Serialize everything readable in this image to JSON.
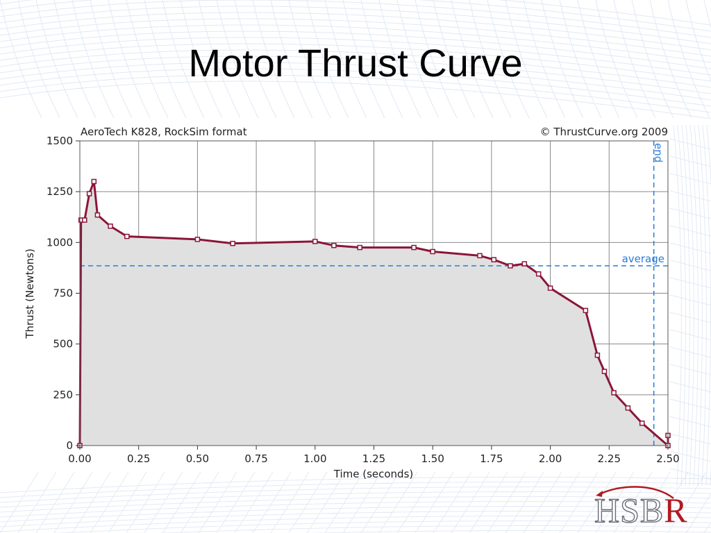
{
  "slide": {
    "title": "Motor Thrust Curve",
    "logo": {
      "text": "HSBR",
      "colors": {
        "letters": "#ffffff",
        "outline": "#6a6a7a",
        "accent": "#b01a20"
      }
    }
  },
  "chart_data": {
    "type": "area",
    "caption_left": "AeroTech K828, RockSim format",
    "caption_right": "© ThrustCurve.org 2009",
    "xlabel": "Time (seconds)",
    "ylabel": "Thrust (Newtons)",
    "xlim": [
      0,
      2.5
    ],
    "ylim": [
      0,
      1500
    ],
    "x_ticks": [
      "0.00",
      "0.25",
      "0.50",
      "0.75",
      "1.00",
      "1.25",
      "1.50",
      "1.75",
      "2.00",
      "2.25",
      "2.50"
    ],
    "y_ticks": [
      "0",
      "250",
      "500",
      "750",
      "1000",
      "1250",
      "1500"
    ],
    "grid": true,
    "series": [
      {
        "x": [
          0.0,
          0.005,
          0.02,
          0.04,
          0.06,
          0.075,
          0.13,
          0.2,
          0.5,
          0.65,
          1.0,
          1.08,
          1.19,
          1.42,
          1.5,
          1.7,
          1.76,
          1.83,
          1.89,
          1.95,
          2.0,
          2.15,
          2.2,
          2.23,
          2.27,
          2.33,
          2.39,
          2.5,
          2.5
        ],
        "y": [
          0,
          1110,
          1110,
          1240,
          1300,
          1135,
          1080,
          1030,
          1015,
          995,
          1005,
          985,
          975,
          975,
          955,
          935,
          915,
          885,
          895,
          845,
          775,
          665,
          445,
          365,
          260,
          185,
          110,
          0,
          50
        ]
      }
    ],
    "average": {
      "label": "average",
      "value": 885
    },
    "end": {
      "label": "end",
      "value": 2.44
    },
    "colors": {
      "line": "#8b1538",
      "fill": "#e0e0e0",
      "reference": "#2a7bd6",
      "grid": "#888888"
    }
  }
}
